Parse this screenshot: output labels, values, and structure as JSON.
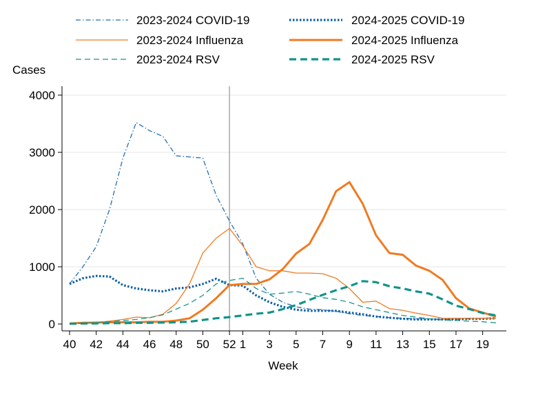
{
  "chart_data": {
    "type": "line",
    "title": "",
    "xlabel": "Week",
    "ylabel": "Cases",
    "ylim": [
      0,
      4000
    ],
    "yticks": [
      0,
      1000,
      2000,
      3000,
      4000
    ],
    "x_weeks": [
      40,
      41,
      42,
      43,
      44,
      45,
      46,
      47,
      48,
      49,
      50,
      51,
      52,
      1,
      2,
      3,
      4,
      5,
      6,
      7,
      8,
      9,
      10,
      11,
      12,
      13,
      14,
      15,
      16,
      17,
      18,
      19,
      20
    ],
    "x_tick_labels": [
      "40",
      "42",
      "44",
      "46",
      "48",
      "50",
      "52",
      "1",
      "3",
      "5",
      "7",
      "9",
      "11",
      "13",
      "15",
      "17",
      "19"
    ],
    "season_divider_week": 52,
    "grid": "horizontal",
    "legend_position": "top",
    "series": [
      {
        "name": "2023-2024 COVID-19",
        "color": "#1f6fb4",
        "style": "dashdot-thin",
        "values": [
          700,
          1000,
          1350,
          2000,
          2900,
          3520,
          3380,
          3280,
          2940,
          2920,
          2900,
          2250,
          1800,
          1400,
          800,
          520,
          380,
          300,
          260,
          250,
          220,
          180,
          150,
          130,
          110,
          100,
          90,
          90,
          80,
          80,
          90,
          100,
          110
        ]
      },
      {
        "name": "2024-2025 COVID-19",
        "color": "#0b5fa8",
        "style": "dotted-thick",
        "values": [
          700,
          800,
          840,
          830,
          680,
          620,
          590,
          570,
          620,
          640,
          700,
          790,
          680,
          670,
          500,
          380,
          300,
          250,
          230,
          230,
          230,
          200,
          170,
          130,
          110,
          90,
          80,
          80,
          80,
          80,
          90,
          90,
          100
        ]
      },
      {
        "name": "2023-2024 Influenza",
        "color": "#f07a21",
        "style": "solid-thin",
        "values": [
          10,
          20,
          30,
          50,
          80,
          120,
          110,
          170,
          360,
          700,
          1240,
          1500,
          1670,
          1370,
          1000,
          930,
          930,
          890,
          890,
          880,
          800,
          620,
          380,
          400,
          270,
          240,
          190,
          150,
          100,
          100,
          100,
          100,
          100
        ]
      },
      {
        "name": "2024-2025 Influenza",
        "color": "#f07a21",
        "style": "solid-thick",
        "values": [
          10,
          20,
          25,
          30,
          30,
          30,
          40,
          40,
          60,
          100,
          250,
          450,
          680,
          700,
          700,
          780,
          960,
          1230,
          1400,
          1820,
          2320,
          2480,
          2100,
          1550,
          1240,
          1210,
          1020,
          930,
          770,
          450,
          270,
          200,
          130
        ]
      },
      {
        "name": "2023-2024 RSV",
        "color": "#17958a",
        "style": "dashed-thin",
        "values": [
          10,
          15,
          20,
          40,
          60,
          80,
          110,
          160,
          260,
          360,
          500,
          700,
          760,
          800,
          620,
          520,
          540,
          570,
          520,
          460,
          430,
          380,
          300,
          250,
          200,
          150,
          120,
          90,
          70,
          60,
          50,
          40,
          20
        ]
      },
      {
        "name": "2024-2025 RSV",
        "color": "#12938a",
        "style": "dashed-thick",
        "values": [
          5,
          8,
          10,
          15,
          15,
          20,
          20,
          25,
          30,
          40,
          70,
          100,
          120,
          150,
          180,
          200,
          260,
          330,
          420,
          510,
          590,
          660,
          750,
          730,
          660,
          620,
          570,
          530,
          430,
          320,
          260,
          190,
          150
        ]
      }
    ]
  }
}
